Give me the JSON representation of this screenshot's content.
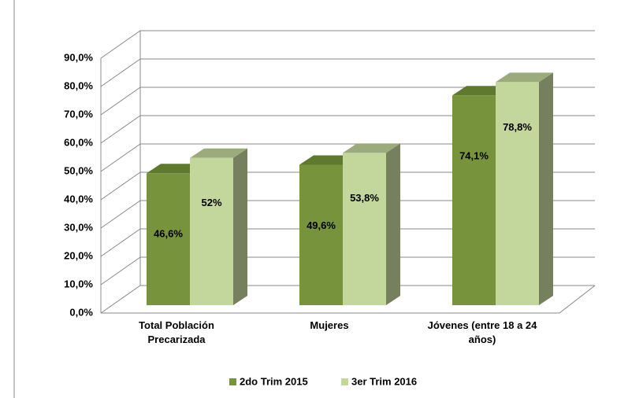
{
  "chart_data": {
    "type": "bar3d",
    "categories": [
      "Total Población Precarizada",
      "Mujeres",
      "Jóvenes (entre 18 a 24 años)"
    ],
    "series": [
      {
        "name": "2do Trim 2015",
        "color": "#77933c",
        "values": [
          46.6,
          49.6,
          74.1
        ],
        "value_labels": [
          "46,6%",
          "49,6%",
          "74,1%"
        ]
      },
      {
        "name": "3er Trim 2016",
        "color": "#c3d69b",
        "values": [
          52,
          53.8,
          78.8
        ],
        "value_labels": [
          "52%",
          "53,8%",
          "78,8%"
        ]
      }
    ],
    "ylim": [
      0,
      90
    ],
    "yticks": [
      {
        "value": 0,
        "label": "0,0%"
      },
      {
        "value": 10,
        "label": "10,0%"
      },
      {
        "value": 20,
        "label": "20,0%"
      },
      {
        "value": 30,
        "label": "30,0%"
      },
      {
        "value": 40,
        "label": "40,0%"
      },
      {
        "value": 50,
        "label": "50,0%"
      },
      {
        "value": 60,
        "label": "60,0%"
      },
      {
        "value": 70,
        "label": "70,0%"
      },
      {
        "value": 80,
        "label": "80,0%"
      },
      {
        "value": 90,
        "label": "90,0%"
      }
    ],
    "grid": true,
    "legend": "bottom"
  }
}
